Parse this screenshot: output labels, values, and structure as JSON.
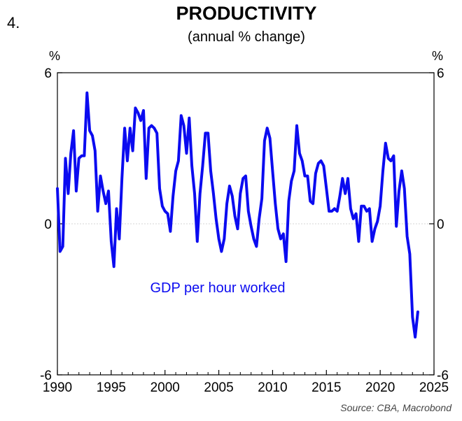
{
  "figure_number": "4.",
  "chart_data": {
    "type": "line",
    "title": "PRODUCTIVITY",
    "subtitle": "(annual % change)",
    "ylabel_left": "%",
    "ylabel_right": "%",
    "xlim": [
      1990,
      2025
    ],
    "ylim": [
      -6,
      6
    ],
    "x_ticks": [
      1990,
      1995,
      2000,
      2005,
      2010,
      2015,
      2020,
      2025
    ],
    "y_ticks": [
      -6,
      0,
      6
    ],
    "grid": true,
    "source": "Source: CBA, Macrobond",
    "series": [
      {
        "name": "GDP per hour worked",
        "color": "#0b0bf0",
        "x": [
          1990.0,
          1990.25,
          1990.5,
          1990.75,
          1991.0,
          1991.25,
          1991.5,
          1991.75,
          1992.0,
          1992.25,
          1992.5,
          1992.75,
          1993.0,
          1993.25,
          1993.5,
          1993.75,
          1994.0,
          1994.25,
          1994.5,
          1994.75,
          1995.0,
          1995.25,
          1995.5,
          1995.75,
          1996.0,
          1996.25,
          1996.5,
          1996.75,
          1997.0,
          1997.25,
          1997.5,
          1997.75,
          1998.0,
          1998.25,
          1998.5,
          1998.75,
          1999.0,
          1999.25,
          1999.5,
          1999.75,
          2000.0,
          2000.25,
          2000.5,
          2000.75,
          2001.0,
          2001.25,
          2001.5,
          2001.75,
          2002.0,
          2002.25,
          2002.5,
          2002.75,
          2003.0,
          2003.25,
          2003.5,
          2003.75,
          2004.0,
          2004.25,
          2004.5,
          2004.75,
          2005.0,
          2005.25,
          2005.5,
          2005.75,
          2006.0,
          2006.25,
          2006.5,
          2006.75,
          2007.0,
          2007.25,
          2007.5,
          2007.75,
          2008.0,
          2008.25,
          2008.5,
          2008.75,
          2009.0,
          2009.25,
          2009.5,
          2009.75,
          2010.0,
          2010.25,
          2010.5,
          2010.75,
          2011.0,
          2011.25,
          2011.5,
          2011.75,
          2012.0,
          2012.25,
          2012.5,
          2012.75,
          2013.0,
          2013.25,
          2013.5,
          2013.75,
          2014.0,
          2014.25,
          2014.5,
          2014.75,
          2015.0,
          2015.25,
          2015.5,
          2015.75,
          2016.0,
          2016.25,
          2016.5,
          2016.75,
          2017.0,
          2017.25,
          2017.5,
          2017.75,
          2018.0,
          2018.25,
          2018.5,
          2018.75,
          2019.0,
          2019.25,
          2019.5,
          2019.75,
          2020.0,
          2020.25,
          2020.5,
          2020.75,
          2021.0,
          2021.25,
          2021.5,
          2021.75,
          2022.0,
          2022.25,
          2022.5,
          2022.75,
          2023.0,
          2023.25,
          2023.5
        ],
        "values": [
          1.4,
          -1.1,
          -0.9,
          2.6,
          1.2,
          2.8,
          3.7,
          1.3,
          2.6,
          2.7,
          2.7,
          5.2,
          3.7,
          3.5,
          2.9,
          0.5,
          1.9,
          1.3,
          0.8,
          1.3,
          -0.7,
          -1.7,
          0.6,
          -0.6,
          1.8,
          3.8,
          2.5,
          3.8,
          2.9,
          4.6,
          4.4,
          4.1,
          4.5,
          1.8,
          3.8,
          3.9,
          3.8,
          3.6,
          1.4,
          0.7,
          0.5,
          0.4,
          -0.3,
          1.1,
          2.1,
          2.5,
          4.3,
          3.9,
          2.8,
          4.2,
          2.3,
          1.2,
          -0.7,
          1.2,
          2.3,
          3.6,
          3.6,
          2.1,
          1.2,
          0.2,
          -0.6,
          -1.1,
          -0.6,
          0.8,
          1.5,
          1.1,
          0.3,
          -0.2,
          1.2,
          1.8,
          1.9,
          0.5,
          -0.1,
          -0.6,
          -0.9,
          0.2,
          1.0,
          3.3,
          3.8,
          3.4,
          2.1,
          0.8,
          -0.2,
          -0.6,
          -0.4,
          -1.5,
          0.9,
          1.7,
          2.1,
          3.9,
          2.8,
          2.5,
          1.9,
          1.9,
          0.9,
          0.8,
          2.0,
          2.4,
          2.5,
          2.3,
          1.4,
          0.5,
          0.5,
          0.6,
          0.5,
          1.1,
          1.8,
          1.2,
          1.8,
          0.6,
          0.2,
          0.4,
          -0.7,
          0.7,
          0.7,
          0.5,
          0.6,
          -0.7,
          -0.2,
          0.1,
          0.7,
          2.1,
          3.2,
          2.6,
          2.5,
          2.7,
          -0.1,
          1.3,
          2.1,
          1.4,
          -0.5,
          -1.2,
          -3.7,
          -4.5,
          -3.5
        ]
      }
    ],
    "annotation": "GDP per hour worked"
  }
}
